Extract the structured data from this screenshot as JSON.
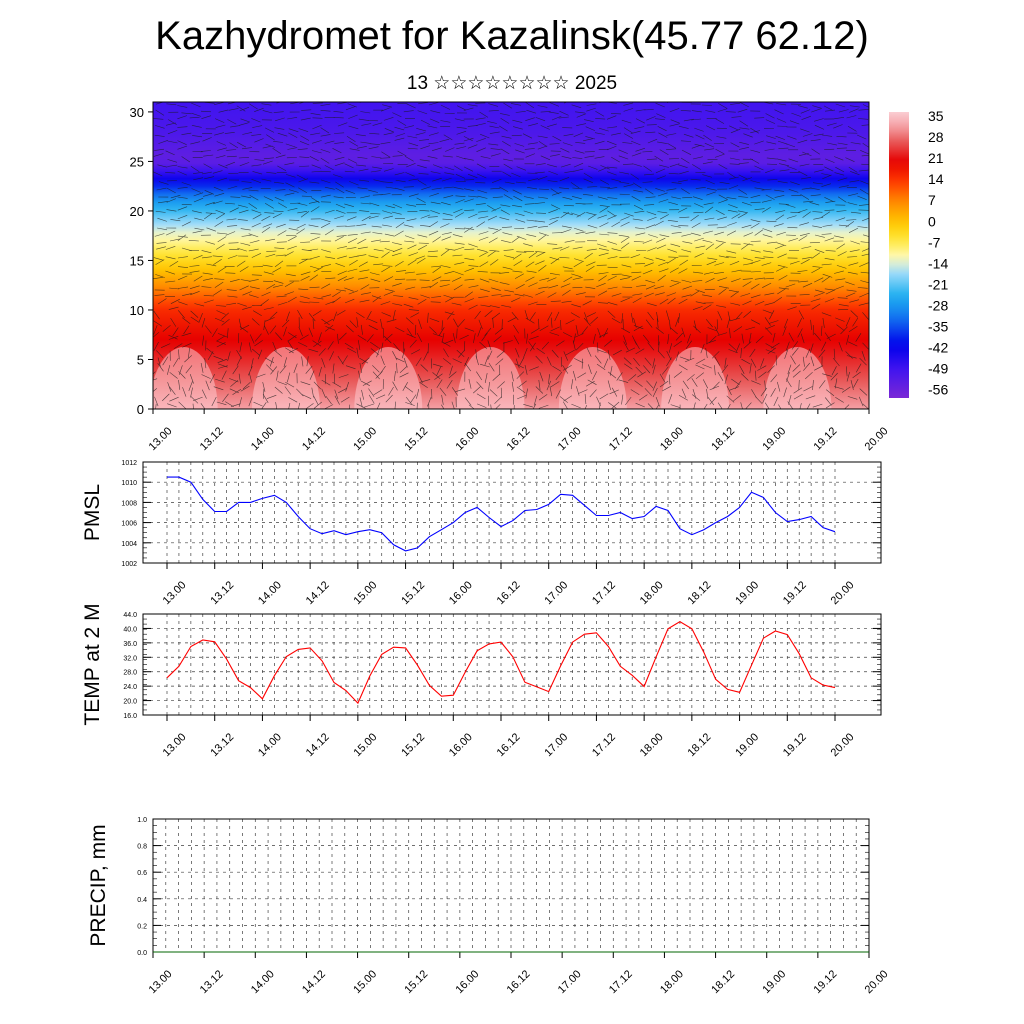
{
  "title": "Kazhydromet for Kazalinsk(45.77 62.12)",
  "subtitle": "13 ☆☆☆☆☆☆☆☆ 2025",
  "chart_data": [
    {
      "type": "heatmap",
      "name": "cross-section",
      "y_ticks": [
        0,
        5,
        10,
        15,
        20,
        25,
        30
      ],
      "ylim": [
        0,
        31
      ],
      "x_ticks": [
        "13.00",
        "13.12",
        "14.00",
        "14.12",
        "15.00",
        "15.12",
        "16.00",
        "16.12",
        "17.00",
        "17.12",
        "18.00",
        "18.12",
        "19.00",
        "19.12",
        "20.00"
      ],
      "colorbar_labels": [
        "35",
        "28",
        "21",
        "14",
        "7",
        "0",
        "-7",
        "-14",
        "-21",
        "-28",
        "-35",
        "-42",
        "-49",
        "-56"
      ],
      "colorbar_range": [
        -60,
        38
      ],
      "temperature_profile": [
        {
          "level": 0,
          "value": 33
        },
        {
          "level": 5,
          "value": 24
        },
        {
          "level": 10,
          "value": 16
        },
        {
          "level": 15,
          "value": -3
        },
        {
          "level": 18,
          "value": -14
        },
        {
          "level": 21,
          "value": -28
        },
        {
          "level": 23,
          "value": -42
        },
        {
          "level": 25,
          "value": -56
        },
        {
          "level": 28,
          "value": -52
        },
        {
          "level": 31,
          "value": -50
        }
      ]
    },
    {
      "type": "line",
      "name": "pmsl",
      "ylabel": "PMSL",
      "y_ticks": [
        "1002",
        "1004",
        "1006",
        "1008",
        "1010",
        "1012"
      ],
      "ylim": [
        1002,
        1012
      ],
      "x_ticks": [
        "13.00",
        "13.12",
        "14.00",
        "14.12",
        "15.00",
        "15.12",
        "16.00",
        "16.12",
        "17.00",
        "17.12",
        "18.00",
        "18.12",
        "19.00",
        "19.12",
        "20.00"
      ],
      "x_step_hours": 3,
      "color": "#0000ff",
      "values": [
        1010.5,
        1010.5,
        1010.0,
        1008.3,
        1007.1,
        1007.1,
        1008.0,
        1008.0,
        1008.4,
        1008.7,
        1008.0,
        1006.6,
        1005.4,
        1004.9,
        1005.2,
        1004.8,
        1005.1,
        1005.3,
        1005.0,
        1003.8,
        1003.2,
        1003.5,
        1004.6,
        1005.3,
        1006.0,
        1007.0,
        1007.5,
        1006.5,
        1005.6,
        1006.2,
        1007.2,
        1007.3,
        1007.8,
        1008.8,
        1008.7,
        1007.7,
        1006.7,
        1006.7,
        1007.0,
        1006.4,
        1006.6,
        1007.6,
        1007.2,
        1005.4,
        1004.8,
        1005.3,
        1006.0,
        1006.6,
        1007.5,
        1009.0,
        1008.5,
        1007.0,
        1006.1,
        1006.3,
        1006.6,
        1005.5,
        1005.1
      ]
    },
    {
      "type": "line",
      "name": "temp2m",
      "ylabel": "TEMP at 2 M",
      "y_ticks": [
        "16.0",
        "20.0",
        "24.0",
        "28.0",
        "32.0",
        "36.0",
        "40.0",
        "44.0"
      ],
      "ylim": [
        16,
        44
      ],
      "x_ticks": [
        "13.00",
        "13.12",
        "14.00",
        "14.12",
        "15.00",
        "15.12",
        "16.00",
        "16.12",
        "17.00",
        "17.12",
        "18.00",
        "18.12",
        "19.00",
        "19.12",
        "20.00"
      ],
      "x_step_hours": 3,
      "color": "#ff0000",
      "values": [
        26.3,
        29.5,
        35.0,
        36.8,
        36.3,
        31.5,
        25.5,
        23.6,
        20.5,
        26.9,
        32.2,
        34.2,
        34.6,
        31.0,
        25.0,
        22.8,
        19.3,
        26.8,
        32.8,
        34.8,
        34.6,
        29.8,
        24.2,
        21.2,
        21.5,
        27.9,
        33.8,
        35.7,
        36.2,
        32.1,
        25.1,
        23.8,
        22.5,
        29.6,
        36.2,
        38.4,
        38.8,
        35.0,
        29.5,
        27.0,
        23.9,
        32.1,
        39.9,
        41.9,
        39.9,
        33.4,
        25.9,
        23.1,
        22.3,
        29.8,
        37.3,
        39.3,
        38.3,
        33.0,
        26.3,
        24.3,
        23.6
      ]
    },
    {
      "type": "line",
      "name": "precip",
      "ylabel": "PRECIP, mm",
      "y_ticks": [
        "0.0",
        "0.2",
        "0.4",
        "0.6",
        "0.8",
        "1.0"
      ],
      "ylim": [
        0,
        1
      ],
      "x_ticks": [
        "13.00",
        "13.12",
        "14.00",
        "14.12",
        "15.00",
        "15.12",
        "16.00",
        "16.12",
        "17.00",
        "17.12",
        "18.00",
        "18.12",
        "19.00",
        "19.12",
        "20.00"
      ],
      "color": "#006400",
      "values": [
        0,
        0,
        0,
        0,
        0,
        0,
        0,
        0,
        0,
        0,
        0,
        0,
        0,
        0,
        0
      ]
    }
  ]
}
